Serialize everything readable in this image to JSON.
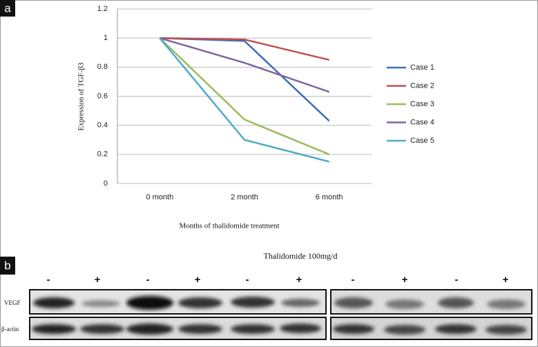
{
  "panel_a_label": "a",
  "panel_b_label": "b",
  "chart_data": {
    "type": "line",
    "x_label": "Months of thalidomide treatment",
    "y_label": "Expression of TGF-β3",
    "categories": [
      "0 month",
      "2 month",
      "6 month"
    ],
    "series": [
      {
        "name": "Case 1",
        "color": "#3b6fb6",
        "values": [
          1,
          0.98,
          0.43
        ]
      },
      {
        "name": "Case 2",
        "color": "#c0504d",
        "values": [
          1,
          0.99,
          0.85
        ]
      },
      {
        "name": "Case 3",
        "color": "#9bbb59",
        "values": [
          1,
          0.44,
          0.2
        ]
      },
      {
        "name": "Case 4",
        "color": "#8064a2",
        "values": [
          1,
          0.83,
          0.63
        ]
      },
      {
        "name": "Case 5",
        "color": "#4bacc6",
        "values": [
          1,
          0.3,
          0.15
        ]
      }
    ],
    "ylim": [
      0,
      1.2
    ],
    "yticks": [
      0,
      0.2,
      0.4,
      0.6,
      0.8,
      1,
      1.2
    ],
    "grid": true,
    "legend": "right"
  },
  "blot": {
    "treatment": "Thalidomide 100mg/d",
    "signs": [
      "-",
      "+",
      "-",
      "+",
      "-",
      "+",
      "-",
      "+",
      "-",
      "+"
    ],
    "rows": [
      "VEGF",
      "β-actin"
    ]
  }
}
